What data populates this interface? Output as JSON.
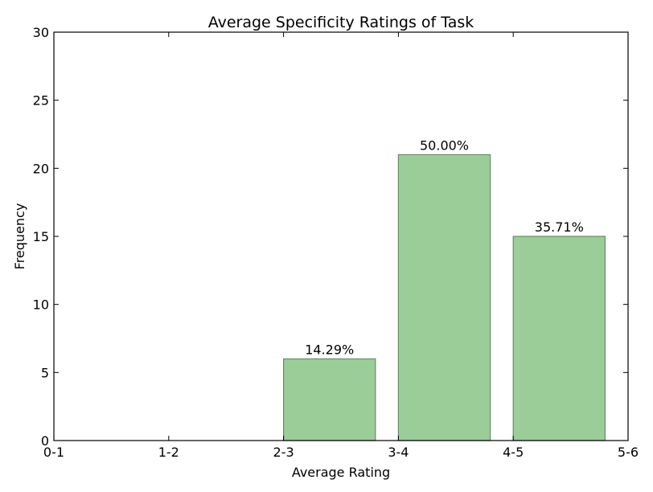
{
  "chart_data": {
    "type": "bar",
    "title": "Average Specificity Ratings of Task",
    "xlabel": "Average Rating",
    "ylabel": "Frequency",
    "xticks": [
      "0-1",
      "1-2",
      "2-3",
      "3-4",
      "4-5",
      "5-6"
    ],
    "yticks": [
      0,
      5,
      10,
      15,
      20,
      25,
      30
    ],
    "ylim": [
      0,
      30
    ],
    "bars": [
      {
        "category": "2-3",
        "x_start": 2,
        "value": 6,
        "label": "14.29%"
      },
      {
        "category": "3-4",
        "x_start": 3,
        "value": 21,
        "label": "50.00%"
      },
      {
        "category": "4-5",
        "x_start": 4,
        "value": 15,
        "label": "35.71%"
      }
    ],
    "bar_color": "#9acd98",
    "bar_edge_color": "#6a8a68",
    "grid": false
  }
}
